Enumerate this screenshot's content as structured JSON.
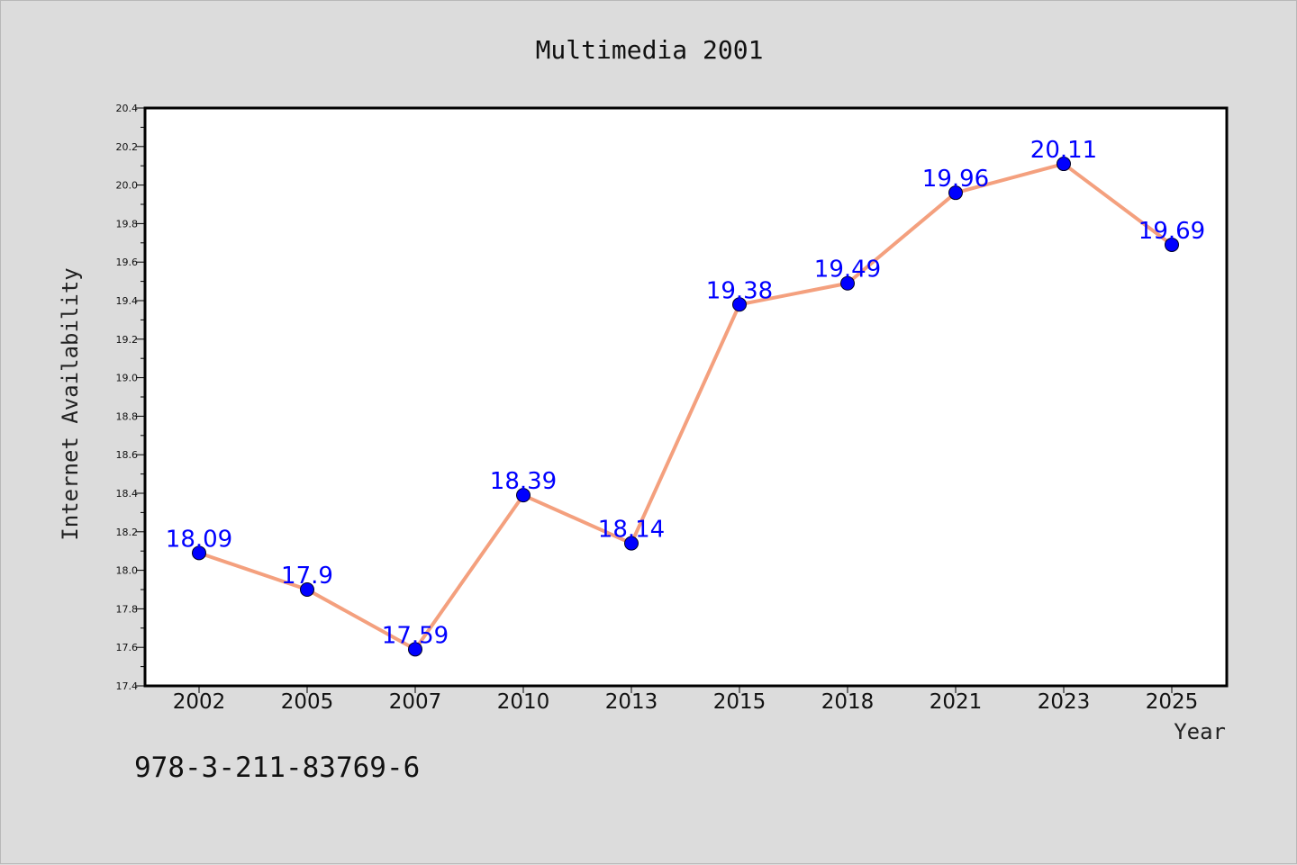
{
  "chart_data": {
    "type": "line",
    "title": "Multimedia 2001",
    "xlabel": "Year",
    "ylabel": "Internet Availability",
    "categories": [
      "2002",
      "2005",
      "2007",
      "2010",
      "2013",
      "2015",
      "2018",
      "2021",
      "2023",
      "2025"
    ],
    "series": [
      {
        "values": [
          18.09,
          17.9,
          17.59,
          18.39,
          18.14,
          19.38,
          19.49,
          19.96,
          20.11,
          19.69
        ]
      }
    ],
    "data_labels": [
      "18.09",
      "17.9",
      "17.59",
      "18.39",
      "18.14",
      "19.38",
      "19.49",
      "19.96",
      "20.11",
      "19.69"
    ],
    "ylim": [
      17.4,
      20.4
    ],
    "yticks": [
      "17.4",
      "17.6",
      "17.8",
      "18.0",
      "18.2",
      "18.4",
      "18.6",
      "18.8",
      "19.0",
      "19.2",
      "19.4",
      "19.6",
      "19.8",
      "20.0",
      "20.2",
      "20.4"
    ],
    "grid": false,
    "legend": "none",
    "colors": {
      "line": "#f4a07e",
      "marker": "#0000ff",
      "label": "#0000ff",
      "plot_background": "#ffffff",
      "page_background": "#dcdcdc"
    }
  },
  "footer": {
    "isbn": "978-3-211-83769-6"
  }
}
